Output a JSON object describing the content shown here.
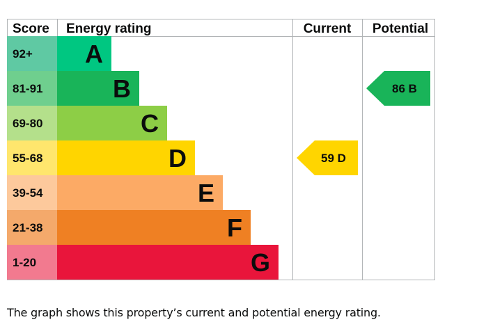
{
  "headers": {
    "score": "Score",
    "rating": "Energy rating",
    "current": "Current",
    "potential": "Potential"
  },
  "chart_data": {
    "type": "bar",
    "bands": [
      {
        "letter": "A",
        "score": "92+",
        "color": "#00c781",
        "score_color": "#5fc9a3"
      },
      {
        "letter": "B",
        "score": "81-91",
        "color": "#19b459",
        "score_color": "#6fcf8e"
      },
      {
        "letter": "C",
        "score": "69-80",
        "color": "#8dce46",
        "score_color": "#b4e08b"
      },
      {
        "letter": "D",
        "score": "55-68",
        "color": "#ffd500",
        "score_color": "#ffe66d"
      },
      {
        "letter": "E",
        "score": "39-54",
        "color": "#fcaa65",
        "score_color": "#fdc99c"
      },
      {
        "letter": "F",
        "score": "21-38",
        "color": "#ef8023",
        "score_color": "#f4a96b"
      },
      {
        "letter": "G",
        "score": "1-20",
        "color": "#e9153b",
        "score_color": "#f27a8f"
      }
    ],
    "current": {
      "value": 59,
      "band": "D",
      "label": "59 D",
      "color": "#ffd500"
    },
    "potential": {
      "value": 86,
      "band": "B",
      "label": "86 B",
      "color": "#19b459"
    }
  },
  "caption": "The graph shows this property’s current and potential energy rating."
}
